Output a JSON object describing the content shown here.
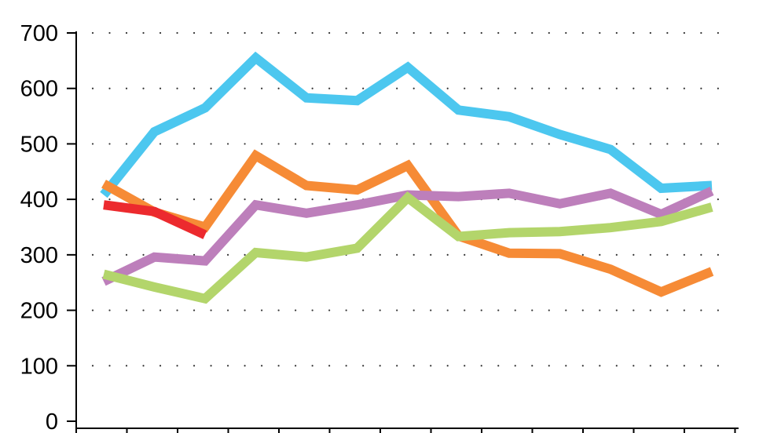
{
  "chart_data": {
    "type": "line",
    "title": "",
    "xlabel": "",
    "ylabel": "",
    "ylim": [
      0,
      700
    ],
    "yticks": [
      0,
      100,
      200,
      300,
      400,
      500,
      600,
      700
    ],
    "x_count": 13,
    "grid": true,
    "legend": "none",
    "series": [
      {
        "color": "#4CC7EF",
        "values": [
          408,
          522,
          565,
          655,
          583,
          578,
          638,
          561,
          549,
          517,
          490,
          420,
          425
        ]
      },
      {
        "color": "#F68B36",
        "values": [
          428,
          377,
          350,
          479,
          425,
          417,
          461,
          334,
          303,
          302,
          274,
          233,
          270
        ]
      },
      {
        "color": "#BD7FBB",
        "values": [
          252,
          296,
          289,
          390,
          375,
          390,
          408,
          405,
          411,
          392,
          411,
          373,
          415
        ]
      },
      {
        "color": "#B3D56B",
        "values": [
          265,
          242,
          221,
          304,
          296,
          312,
          403,
          333,
          340,
          342,
          349,
          360,
          386
        ]
      },
      {
        "color": "#EC2A2E",
        "values": [
          390,
          378,
          336,
          null,
          null,
          null,
          null,
          null,
          null,
          null,
          null,
          null,
          null
        ]
      }
    ]
  }
}
